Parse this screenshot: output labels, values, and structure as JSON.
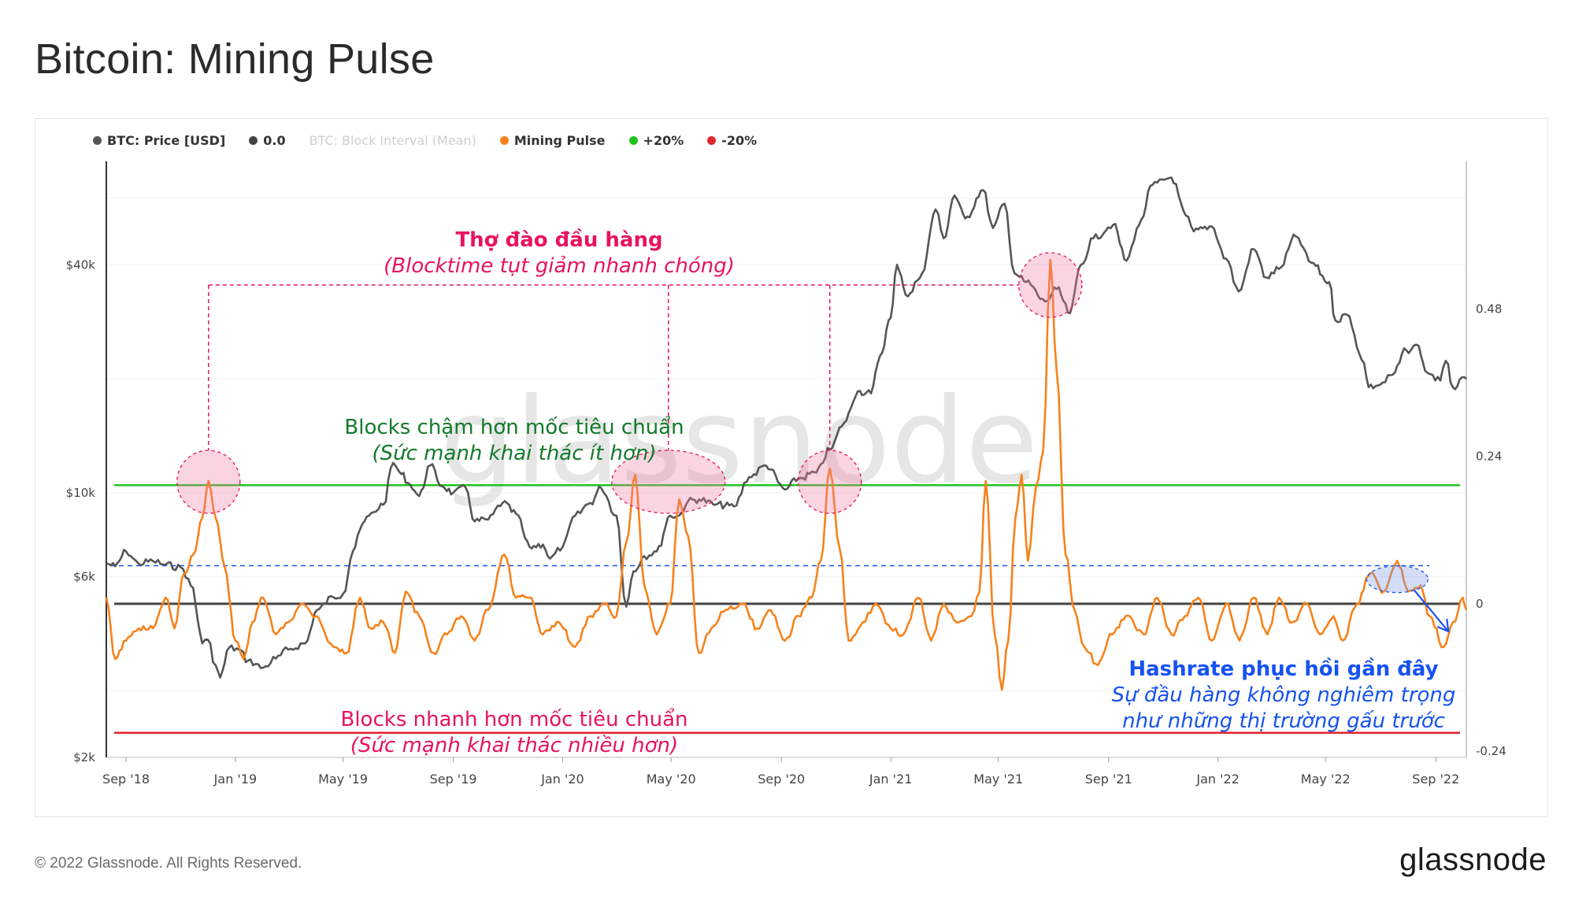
{
  "title": "Bitcoin: Mining Pulse",
  "footer": {
    "copyright": "© 2022 Glassnode. All Rights Reserved.",
    "brand": "glassnode"
  },
  "watermark": "glassnode",
  "colors": {
    "price": "#555555",
    "zero": "#444444",
    "block_interval": "#cccccc",
    "mining_pulse": "#f7821b",
    "plus20": "#1ec31e",
    "minus20": "#e0242e",
    "capitulation": "#e8135f",
    "slow_blocks": "#127a2a",
    "recovery": "#1652f0"
  },
  "legend": [
    {
      "label": "BTC: Price [USD]",
      "color": "#555555",
      "muted": false
    },
    {
      "label": "0.0",
      "color": "#444444",
      "muted": false
    },
    {
      "label": "BTC: Block Interval (Mean)",
      "color": "#cccccc",
      "muted": true
    },
    {
      "label": "Mining Pulse",
      "color": "#f7821b",
      "muted": false
    },
    {
      "label": "+20%",
      "color": "#1ec31e",
      "muted": false
    },
    {
      "label": "-20%",
      "color": "#e0242e",
      "muted": false
    }
  ],
  "annotations": {
    "capitulation_title": "Thợ đào đầu hàng",
    "capitulation_sub": "(Blocktime tụt giảm nhanh chóng)",
    "slow_title": "Blocks chậm hơn mốc tiêu chuẩn",
    "slow_sub": "(Sức mạnh khai thác ít hơn)",
    "fast_title": "Blocks nhanh hơn mốc tiêu chuẩn",
    "fast_sub": "(Sức mạnh khai thác nhiều hơn)",
    "recovery_title": "Hashrate phục hồi gần đây",
    "recovery_sub1": "Sự đầu hàng không nghiêm trọng",
    "recovery_sub2": "như những thị trường gấu trước"
  },
  "chart_data": {
    "type": "line",
    "x_tick_labels": [
      "Sep '18",
      "Jan '19",
      "May '19",
      "Sep '19",
      "Jan '20",
      "May '20",
      "Sep '20",
      "Jan '21",
      "May '21",
      "Sep '21",
      "Jan '22",
      "May '22",
      "Sep '22"
    ],
    "x_ticks": [
      "2018-09-01",
      "2019-01-01",
      "2019-05-01",
      "2019-09-01",
      "2020-01-01",
      "2020-05-01",
      "2020-09-01",
      "2021-01-01",
      "2021-05-01",
      "2021-09-01",
      "2022-01-01",
      "2022-05-01",
      "2022-09-01"
    ],
    "x_range": [
      "2018-08-10",
      "2022-10-05"
    ],
    "y_left": {
      "scale": "log",
      "tick_labels": [
        "$2k",
        "$6k",
        "$10k",
        "$40k"
      ],
      "ticks": [
        2000,
        6000,
        10000,
        40000
      ],
      "range": [
        2000,
        75000
      ]
    },
    "y_right": {
      "scale": "linear",
      "tick_labels": [
        "-0.24",
        "0",
        "0.24",
        "0.48"
      ],
      "ticks": [
        -0.24,
        0,
        0.24,
        0.48
      ],
      "range": [
        -0.25,
        0.72
      ]
    },
    "reference_lines": [
      {
        "name": "0.0",
        "value": 0.0,
        "axis": "right"
      },
      {
        "name": "+20%",
        "value": 0.193,
        "axis": "right"
      },
      {
        "name": "-20%",
        "value": -0.21,
        "axis": "right"
      }
    ],
    "series": [
      {
        "name": "BTC: Price [USD]",
        "axis": "left",
        "points": [
          [
            "2018-08-10",
            6500
          ],
          [
            "2018-08-20",
            6400
          ],
          [
            "2018-09-01",
            7000
          ],
          [
            "2018-09-15",
            6500
          ],
          [
            "2018-10-01",
            6600
          ],
          [
            "2018-10-15",
            6450
          ],
          [
            "2018-11-01",
            6350
          ],
          [
            "2018-11-15",
            5600
          ],
          [
            "2018-11-20",
            4600
          ],
          [
            "2018-11-25",
            4000
          ],
          [
            "2018-12-01",
            4100
          ],
          [
            "2018-12-10",
            3500
          ],
          [
            "2018-12-15",
            3250
          ],
          [
            "2018-12-25",
            3900
          ],
          [
            "2019-01-05",
            3850
          ],
          [
            "2019-01-15",
            3600
          ],
          [
            "2019-02-01",
            3450
          ],
          [
            "2019-02-15",
            3650
          ],
          [
            "2019-03-01",
            3850
          ],
          [
            "2019-03-20",
            4000
          ],
          [
            "2019-04-02",
            4900
          ],
          [
            "2019-04-20",
            5300
          ],
          [
            "2019-05-01",
            5400
          ],
          [
            "2019-05-12",
            7000
          ],
          [
            "2019-05-20",
            8000
          ],
          [
            "2019-05-30",
            8700
          ],
          [
            "2019-06-15",
            9300
          ],
          [
            "2019-06-26",
            12000
          ],
          [
            "2019-07-05",
            11200
          ],
          [
            "2019-07-15",
            10500
          ],
          [
            "2019-07-25",
            9800
          ],
          [
            "2019-08-06",
            11800
          ],
          [
            "2019-08-20",
            10400
          ],
          [
            "2019-09-01",
            10000
          ],
          [
            "2019-09-15",
            10300
          ],
          [
            "2019-09-25",
            8400
          ],
          [
            "2019-10-10",
            8500
          ],
          [
            "2019-10-26",
            9400
          ],
          [
            "2019-11-10",
            8800
          ],
          [
            "2019-11-25",
            7200
          ],
          [
            "2019-12-10",
            7300
          ],
          [
            "2019-12-18",
            6700
          ],
          [
            "2020-01-01",
            7200
          ],
          [
            "2020-01-15",
            8700
          ],
          [
            "2020-02-01",
            9400
          ],
          [
            "2020-02-13",
            10300
          ],
          [
            "2020-03-01",
            8700
          ],
          [
            "2020-03-12",
            5000
          ],
          [
            "2020-03-20",
            6200
          ],
          [
            "2020-04-01",
            6800
          ],
          [
            "2020-04-15",
            7000
          ],
          [
            "2020-04-30",
            8700
          ],
          [
            "2020-05-10",
            8700
          ],
          [
            "2020-05-20",
            9500
          ],
          [
            "2020-06-01",
            9600
          ],
          [
            "2020-06-20",
            9300
          ],
          [
            "2020-07-10",
            9200
          ],
          [
            "2020-07-27",
            11000
          ],
          [
            "2020-08-15",
            11800
          ],
          [
            "2020-09-05",
            10200
          ],
          [
            "2020-09-20",
            10900
          ],
          [
            "2020-10-10",
            11300
          ],
          [
            "2020-10-25",
            13000
          ],
          [
            "2020-11-10",
            15300
          ],
          [
            "2020-11-25",
            18500
          ],
          [
            "2020-12-10",
            18300
          ],
          [
            "2020-12-20",
            23000
          ],
          [
            "2021-01-01",
            29000
          ],
          [
            "2021-01-08",
            40000
          ],
          [
            "2021-01-20",
            33000
          ],
          [
            "2021-02-05",
            38000
          ],
          [
            "2021-02-20",
            56000
          ],
          [
            "2021-03-01",
            47000
          ],
          [
            "2021-03-13",
            61000
          ],
          [
            "2021-03-25",
            53000
          ],
          [
            "2021-04-14",
            63000
          ],
          [
            "2021-04-25",
            50000
          ],
          [
            "2021-05-08",
            58000
          ],
          [
            "2021-05-19",
            38000
          ],
          [
            "2021-06-01",
            36000
          ],
          [
            "2021-06-22",
            32000
          ],
          [
            "2021-07-05",
            34500
          ],
          [
            "2021-07-20",
            29800
          ],
          [
            "2021-08-01",
            40000
          ],
          [
            "2021-08-15",
            47000
          ],
          [
            "2021-09-06",
            51000
          ],
          [
            "2021-09-21",
            41000
          ],
          [
            "2021-10-05",
            51000
          ],
          [
            "2021-10-20",
            65000
          ],
          [
            "2021-11-10",
            68000
          ],
          [
            "2021-11-26",
            54000
          ],
          [
            "2021-12-05",
            49000
          ],
          [
            "2021-12-25",
            50500
          ],
          [
            "2022-01-10",
            41500
          ],
          [
            "2022-01-24",
            34000
          ],
          [
            "2022-02-10",
            44000
          ],
          [
            "2022-02-24",
            37000
          ],
          [
            "2022-03-10",
            39000
          ],
          [
            "2022-03-29",
            47500
          ],
          [
            "2022-04-15",
            40500
          ],
          [
            "2022-05-05",
            36000
          ],
          [
            "2022-05-12",
            28500
          ],
          [
            "2022-05-25",
            29500
          ],
          [
            "2022-06-13",
            22000
          ],
          [
            "2022-06-18",
            19000
          ],
          [
            "2022-07-01",
            19300
          ],
          [
            "2022-07-15",
            20500
          ],
          [
            "2022-07-30",
            23800
          ],
          [
            "2022-08-13",
            24400
          ],
          [
            "2022-08-20",
            21000
          ],
          [
            "2022-09-06",
            19800
          ],
          [
            "2022-09-12",
            22300
          ],
          [
            "2022-09-20",
            19000
          ],
          [
            "2022-10-05",
            20000
          ]
        ]
      },
      {
        "name": "Mining Pulse",
        "axis": "right",
        "points": [
          [
            "2018-08-10",
            0.01
          ],
          [
            "2018-08-20",
            -0.09
          ],
          [
            "2018-09-01",
            -0.06
          ],
          [
            "2018-09-15",
            -0.04
          ],
          [
            "2018-10-01",
            -0.04
          ],
          [
            "2018-10-15",
            0.01
          ],
          [
            "2018-10-25",
            -0.04
          ],
          [
            "2018-11-05",
            0.05
          ],
          [
            "2018-11-15",
            0.08
          ],
          [
            "2018-11-25",
            0.14
          ],
          [
            "2018-12-02",
            0.2
          ],
          [
            "2018-12-10",
            0.14
          ],
          [
            "2018-12-20",
            0.06
          ],
          [
            "2019-01-01",
            -0.06
          ],
          [
            "2019-01-10",
            -0.09
          ],
          [
            "2019-01-20",
            -0.03
          ],
          [
            "2019-02-01",
            0.01
          ],
          [
            "2019-02-15",
            -0.05
          ],
          [
            "2019-03-01",
            -0.03
          ],
          [
            "2019-03-15",
            0.0
          ],
          [
            "2019-04-01",
            -0.02
          ],
          [
            "2019-04-20",
            -0.07
          ],
          [
            "2019-05-05",
            -0.08
          ],
          [
            "2019-05-20",
            0.01
          ],
          [
            "2019-06-01",
            -0.04
          ],
          [
            "2019-06-15",
            -0.03
          ],
          [
            "2019-06-28",
            -0.08
          ],
          [
            "2019-07-10",
            0.02
          ],
          [
            "2019-07-25",
            -0.02
          ],
          [
            "2019-08-10",
            -0.08
          ],
          [
            "2019-08-25",
            -0.05
          ],
          [
            "2019-09-10",
            -0.02
          ],
          [
            "2019-09-25",
            -0.06
          ],
          [
            "2019-10-10",
            -0.01
          ],
          [
            "2019-10-28",
            0.08
          ],
          [
            "2019-11-10",
            0.01
          ],
          [
            "2019-11-25",
            0.01
          ],
          [
            "2019-12-10",
            -0.05
          ],
          [
            "2019-12-28",
            -0.03
          ],
          [
            "2020-01-15",
            -0.07
          ],
          [
            "2020-02-01",
            -0.02
          ],
          [
            "2020-02-15",
            0.0
          ],
          [
            "2020-03-01",
            -0.02
          ],
          [
            "2020-03-12",
            0.1
          ],
          [
            "2020-03-22",
            0.21
          ],
          [
            "2020-04-01",
            0.03
          ],
          [
            "2020-04-15",
            -0.05
          ],
          [
            "2020-04-30",
            0.0
          ],
          [
            "2020-05-10",
            0.17
          ],
          [
            "2020-05-20",
            0.11
          ],
          [
            "2020-06-01",
            -0.08
          ],
          [
            "2020-06-15",
            -0.04
          ],
          [
            "2020-07-01",
            -0.01
          ],
          [
            "2020-07-20",
            0.0
          ],
          [
            "2020-08-05",
            -0.04
          ],
          [
            "2020-08-20",
            -0.01
          ],
          [
            "2020-09-05",
            -0.06
          ],
          [
            "2020-09-20",
            -0.02
          ],
          [
            "2020-10-05",
            0.01
          ],
          [
            "2020-10-15",
            0.07
          ],
          [
            "2020-10-25",
            0.22
          ],
          [
            "2020-11-05",
            0.09
          ],
          [
            "2020-11-15",
            -0.06
          ],
          [
            "2020-12-01",
            -0.03
          ],
          [
            "2020-12-15",
            0.0
          ],
          [
            "2021-01-01",
            -0.04
          ],
          [
            "2021-01-15",
            -0.05
          ],
          [
            "2021-02-01",
            0.01
          ],
          [
            "2021-02-15",
            -0.06
          ],
          [
            "2021-03-01",
            0.0
          ],
          [
            "2021-03-15",
            -0.03
          ],
          [
            "2021-04-01",
            -0.02
          ],
          [
            "2021-04-10",
            0.02
          ],
          [
            "2021-04-17",
            0.2
          ],
          [
            "2021-04-27",
            -0.05
          ],
          [
            "2021-05-05",
            -0.14
          ],
          [
            "2021-05-12",
            -0.06
          ],
          [
            "2021-05-20",
            0.14
          ],
          [
            "2021-05-27",
            0.21
          ],
          [
            "2021-06-03",
            0.07
          ],
          [
            "2021-06-12",
            0.19
          ],
          [
            "2021-06-20",
            0.25
          ],
          [
            "2021-06-28",
            0.56
          ],
          [
            "2021-07-05",
            0.38
          ],
          [
            "2021-07-15",
            0.08
          ],
          [
            "2021-07-25",
            -0.01
          ],
          [
            "2021-08-05",
            -0.07
          ],
          [
            "2021-08-20",
            -0.1
          ],
          [
            "2021-09-05",
            -0.05
          ],
          [
            "2021-09-20",
            -0.02
          ],
          [
            "2021-10-10",
            -0.05
          ],
          [
            "2021-10-25",
            0.01
          ],
          [
            "2021-11-10",
            -0.05
          ],
          [
            "2021-11-25",
            -0.02
          ],
          [
            "2021-12-10",
            0.01
          ],
          [
            "2021-12-25",
            -0.06
          ],
          [
            "2022-01-10",
            0.0
          ],
          [
            "2022-01-25",
            -0.06
          ],
          [
            "2022-02-10",
            0.01
          ],
          [
            "2022-02-25",
            -0.05
          ],
          [
            "2022-03-10",
            0.01
          ],
          [
            "2022-03-25",
            -0.03
          ],
          [
            "2022-04-10",
            0.0
          ],
          [
            "2022-04-25",
            -0.05
          ],
          [
            "2022-05-10",
            -0.02
          ],
          [
            "2022-05-20",
            -0.06
          ],
          [
            "2022-06-05",
            0.0
          ],
          [
            "2022-06-20",
            0.05
          ],
          [
            "2022-07-05",
            0.02
          ],
          [
            "2022-07-20",
            0.07
          ],
          [
            "2022-08-01",
            0.02
          ],
          [
            "2022-08-15",
            0.03
          ],
          [
            "2022-08-25",
            -0.02
          ],
          [
            "2022-09-10",
            -0.07
          ],
          [
            "2022-09-20",
            -0.03
          ],
          [
            "2022-10-01",
            0.01
          ],
          [
            "2022-10-05",
            -0.01
          ]
        ]
      }
    ]
  }
}
